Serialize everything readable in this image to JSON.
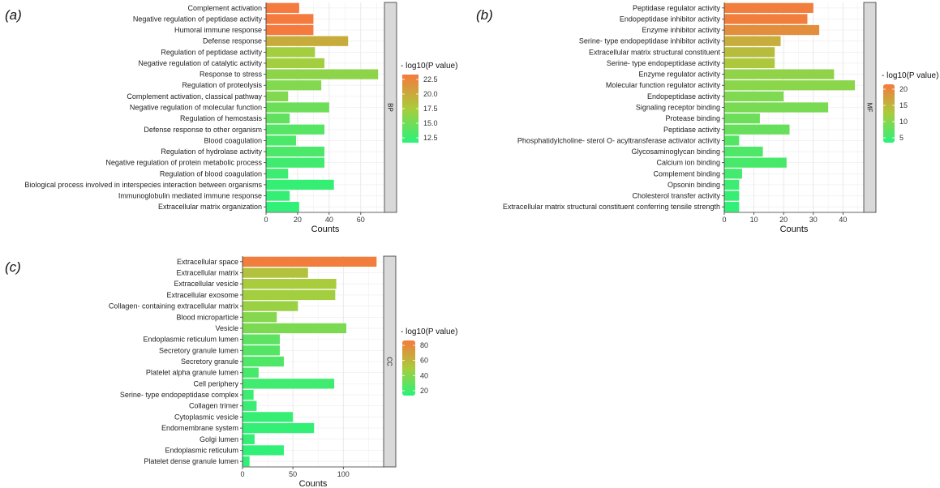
{
  "chart_data": [
    {
      "type": "bar",
      "panel_label": "(a)",
      "facet": "BP",
      "xlabel": "Counts",
      "xlim": [
        0,
        75
      ],
      "xticks": [
        "0",
        "20",
        "40",
        "60"
      ],
      "legend_title": "- log10(P value)",
      "legend_ticks": [
        "22.5",
        "20.0",
        "17.5",
        "15.0",
        "12.5"
      ],
      "categories": [
        "Complement activation",
        "Negative regulation of peptidase activity",
        "Humoral immune response",
        "Defense response",
        "Regulation of peptidase activity",
        "Negative regulation of catalytic activity",
        "Response to stress",
        "Regulation of proteolysis",
        "Complement activation, classical pathway",
        "Negative regulation of molecular function",
        "Regulation of hemostasis",
        "Defense response to other organism",
        "Blood coagulation",
        "Regulation of hydrolase activity",
        "Negative regulation of protein metabolic process",
        "Regulation of blood coagulation",
        "Biological process involved in interspecies interaction between organisms",
        "Immunoglobulin mediated immune response",
        "Extracellular matrix organization"
      ],
      "values": [
        21,
        30,
        30,
        52,
        31,
        37,
        71,
        35,
        14,
        40,
        15,
        37,
        19,
        37,
        37,
        14,
        43,
        15,
        21
      ],
      "neg_log10_p": [
        23.5,
        23.5,
        23.5,
        20.0,
        17.5,
        17.5,
        16.5,
        16.0,
        16.0,
        15.0,
        14.5,
        14.0,
        13.5,
        13.5,
        13.0,
        12.8,
        12.5,
        12.5,
        12.3
      ],
      "color_range": [
        12.0,
        23.5
      ]
    },
    {
      "type": "bar",
      "panel_label": "(b)",
      "facet": "MF",
      "xlabel": "Counts",
      "xlim": [
        0,
        47
      ],
      "xticks": [
        "0",
        "10",
        "20",
        "30",
        "40"
      ],
      "legend_title": "- log10(P value)",
      "legend_ticks": [
        "20",
        "15",
        "10",
        "5"
      ],
      "categories": [
        "Peptidase regulator activity",
        "Endopeptidase inhibitor activity",
        "Enzyme inhibitor activity",
        "Serine- type endopeptidase inhibitor activity",
        "Extracellular matrix structural constituent",
        "Serine- type endopeptidase activity",
        "Enzyme regulator activity",
        "Molecular function regulator activity",
        "Endopeptidase activity",
        "Signaling receptor binding",
        "Protease binding",
        "Peptidase activity",
        "Phosphatidylcholine- sterol O- acyltransferase activator activity",
        "Glycosaminoglycan binding",
        "Calcium ion binding",
        "Complement binding",
        "Opsonin binding",
        "Cholesterol transfer activity",
        "Extracellular matrix structural constituent conferring tensile strength"
      ],
      "values": [
        30,
        28,
        32,
        19,
        17,
        17,
        37,
        44,
        20,
        35,
        12,
        22,
        5,
        13,
        21,
        6,
        5,
        5,
        5
      ],
      "neg_log10_p": [
        24.0,
        24.0,
        22.0,
        18.0,
        16.0,
        14.5,
        12.0,
        11.5,
        10.5,
        10.0,
        9.0,
        8.5,
        7.0,
        6.5,
        6.0,
        5.5,
        5.0,
        4.5,
        4.0
      ],
      "color_range": [
        3.5,
        24.5
      ]
    },
    {
      "type": "bar",
      "panel_label": "(c)",
      "facet": "CC",
      "xlabel": "Counts",
      "xlim": [
        0,
        140
      ],
      "xticks": [
        "0",
        "50",
        "100"
      ],
      "legend_title": "- log10(P value)",
      "legend_ticks": [
        "80",
        "60",
        "40",
        "20"
      ],
      "categories": [
        "Extracellular space",
        "Extracellular matrix",
        "Extracellular vesicle",
        "Extracellular exosome",
        "Collagen- containing extracellular matrix",
        "Blood microparticle",
        "Vesicle",
        "Endoplasmic reticulum lumen",
        "Secretory granule lumen",
        "Secretory granule",
        "Platelet alpha granule lumen",
        "Cell periphery",
        "Serine- type endopeptidase complex",
        "Collagen trimer",
        "Cytoplasmic vesicle",
        "Endomembrane system",
        "Golgi lumen",
        "Endoplasmic reticulum",
        "Platelet dense granule lumen"
      ],
      "values": [
        133,
        65,
        93,
        92,
        55,
        34,
        103,
        37,
        37,
        41,
        16,
        91,
        11,
        14,
        50,
        71,
        12,
        41,
        7
      ],
      "neg_log10_p": [
        90,
        55,
        50,
        48,
        45,
        38,
        35,
        25,
        22,
        20,
        18,
        15,
        14,
        13,
        12,
        11,
        11,
        10,
        10
      ],
      "color_range": [
        8,
        92
      ]
    }
  ]
}
